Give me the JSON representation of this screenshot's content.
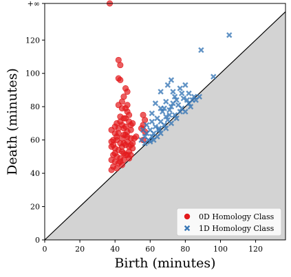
{
  "chart_data": {
    "type": "scatter",
    "title": "",
    "xlabel": "Birth (minutes)",
    "ylabel": "Death (minutes)",
    "xlim": [
      0,
      137
    ],
    "ylim": [
      0,
      142
    ],
    "infinity_value": 142,
    "infinity_label": "+∞",
    "x_ticks": [
      0,
      20,
      40,
      60,
      80,
      100,
      120
    ],
    "y_ticks": [
      0,
      20,
      40,
      60,
      80,
      100,
      120
    ],
    "x_tick_labels": [
      "0",
      "20",
      "40",
      "60",
      "80",
      "100",
      "120"
    ],
    "y_tick_labels": [
      "0",
      "20",
      "40",
      "60",
      "80",
      "100",
      "120"
    ],
    "diagonal": true,
    "legend_position": "lower-right",
    "series": [
      {
        "name": "0D Homology Class",
        "marker": "circle",
        "color": "#e31a1c",
        "points": [
          [
            37,
            142
          ],
          [
            42,
            108
          ],
          [
            43,
            105
          ],
          [
            42,
            97
          ],
          [
            43,
            96
          ],
          [
            46,
            91
          ],
          [
            47,
            89
          ],
          [
            45,
            86
          ],
          [
            47,
            81
          ],
          [
            42,
            81
          ],
          [
            44,
            79
          ],
          [
            47,
            77
          ],
          [
            43,
            74
          ],
          [
            45,
            73
          ],
          [
            48,
            71
          ],
          [
            41,
            70
          ],
          [
            44,
            69
          ],
          [
            46,
            68
          ],
          [
            49,
            66
          ],
          [
            38,
            66
          ],
          [
            40,
            64
          ],
          [
            42,
            64
          ],
          [
            45,
            63
          ],
          [
            47,
            62
          ],
          [
            49,
            61
          ],
          [
            39,
            60
          ],
          [
            41,
            60
          ],
          [
            43,
            58
          ],
          [
            45,
            58
          ],
          [
            46,
            57
          ],
          [
            48,
            56
          ],
          [
            50,
            55
          ],
          [
            38,
            56
          ],
          [
            40,
            55
          ],
          [
            42,
            54
          ],
          [
            44,
            53
          ],
          [
            45,
            52
          ],
          [
            47,
            51
          ],
          [
            49,
            51
          ],
          [
            39,
            51
          ],
          [
            41,
            50
          ],
          [
            43,
            49
          ],
          [
            45,
            48
          ],
          [
            38,
            48
          ],
          [
            40,
            47
          ],
          [
            42,
            46
          ],
          [
            44,
            45
          ],
          [
            46,
            51
          ],
          [
            48,
            53
          ],
          [
            50,
            58
          ],
          [
            39,
            44
          ],
          [
            41,
            43
          ],
          [
            38,
            42
          ],
          [
            43,
            47
          ],
          [
            47,
            65
          ],
          [
            45,
            67
          ],
          [
            43,
            71
          ],
          [
            41,
            62
          ],
          [
            39,
            57
          ],
          [
            49,
            69
          ],
          [
            51,
            61
          ],
          [
            47,
            59
          ],
          [
            44,
            56
          ],
          [
            48,
            49
          ],
          [
            40,
            52
          ],
          [
            46,
            73
          ],
          [
            48,
            75
          ],
          [
            44,
            61
          ],
          [
            46,
            63
          ],
          [
            42,
            67
          ],
          [
            50,
            70
          ],
          [
            38,
            59
          ],
          [
            40,
            68
          ],
          [
            46,
            79
          ],
          [
            44,
            83
          ],
          [
            49,
            57
          ],
          [
            52,
            62
          ],
          [
            56,
            60
          ],
          [
            57,
            65
          ],
          [
            56,
            69
          ],
          [
            57,
            72
          ],
          [
            56,
            75
          ],
          [
            55,
            67
          ]
        ]
      },
      {
        "name": "1D Homology Class",
        "marker": "x",
        "color": "#3a78b6",
        "points": [
          [
            105,
            123
          ],
          [
            89,
            114
          ],
          [
            96,
            98
          ],
          [
            72,
            96
          ],
          [
            70,
            93
          ],
          [
            80,
            93
          ],
          [
            77,
            91
          ],
          [
            66,
            89
          ],
          [
            73,
            89
          ],
          [
            82,
            88
          ],
          [
            85,
            86
          ],
          [
            88,
            86
          ],
          [
            63,
            82
          ],
          [
            69,
            83
          ],
          [
            75,
            84
          ],
          [
            79,
            85
          ],
          [
            66,
            79
          ],
          [
            72,
            80
          ],
          [
            76,
            81
          ],
          [
            82,
            82
          ],
          [
            86,
            84
          ],
          [
            61,
            76
          ],
          [
            67,
            77
          ],
          [
            71,
            78
          ],
          [
            78,
            79
          ],
          [
            83,
            80
          ],
          [
            64,
            73
          ],
          [
            69,
            74
          ],
          [
            74,
            75
          ],
          [
            80,
            77
          ],
          [
            61,
            71
          ],
          [
            66,
            71
          ],
          [
            70,
            72
          ],
          [
            75,
            73
          ],
          [
            58,
            69
          ],
          [
            63,
            68
          ],
          [
            68,
            69
          ],
          [
            72,
            70
          ],
          [
            56,
            66
          ],
          [
            60,
            66
          ],
          [
            65,
            66
          ],
          [
            69,
            67
          ],
          [
            58,
            64
          ],
          [
            62,
            64
          ],
          [
            66,
            64
          ],
          [
            57,
            62
          ],
          [
            61,
            62
          ],
          [
            64,
            62
          ],
          [
            55,
            60
          ],
          [
            59,
            60
          ],
          [
            62,
            60
          ],
          [
            57,
            58
          ],
          [
            60,
            59
          ],
          [
            65,
            67
          ],
          [
            71,
            75
          ],
          [
            77,
            77
          ],
          [
            73,
            82
          ],
          [
            68,
            79
          ],
          [
            74,
            86
          ],
          [
            78,
            88
          ],
          [
            84,
            84
          ],
          [
            81,
            84
          ]
        ]
      }
    ]
  }
}
